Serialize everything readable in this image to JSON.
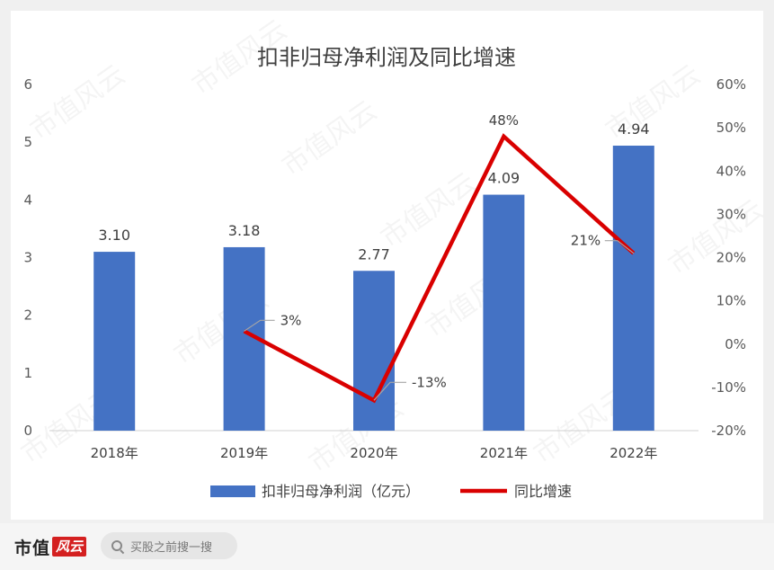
{
  "chart_data": {
    "type": "bar",
    "title": "扣非归母净利润及同比增速",
    "categories": [
      "2018年",
      "2019年",
      "2020年",
      "2021年",
      "2022年"
    ],
    "series": [
      {
        "name": "扣非归母净利润（亿元）",
        "type": "bar",
        "axis": "left",
        "color": "#4472c4",
        "values": [
          3.1,
          3.18,
          2.77,
          4.09,
          4.94
        ],
        "labels": [
          "3.10",
          "3.18",
          "2.77",
          "4.09",
          "4.94"
        ]
      },
      {
        "name": "同比增速",
        "type": "line",
        "axis": "right",
        "color": "#d90000",
        "values": [
          null,
          3,
          -13,
          48,
          21
        ],
        "labels": [
          "",
          "3%",
          "-13%",
          "48%",
          "21%"
        ]
      }
    ],
    "y_left": {
      "min": 0,
      "max": 6,
      "ticks": [
        "0",
        "1",
        "2",
        "3",
        "4",
        "5",
        "6"
      ]
    },
    "y_right": {
      "min": -20,
      "max": 60,
      "ticks": [
        "-20%",
        "-10%",
        "0%",
        "10%",
        "20%",
        "30%",
        "40%",
        "50%",
        "60%"
      ]
    },
    "legend_position": "bottom",
    "grid": false
  },
  "watermark": "市值风云",
  "footer": {
    "brand": "市值",
    "brand_badge": "风云",
    "search_placeholder": "买股之前搜一搜"
  }
}
